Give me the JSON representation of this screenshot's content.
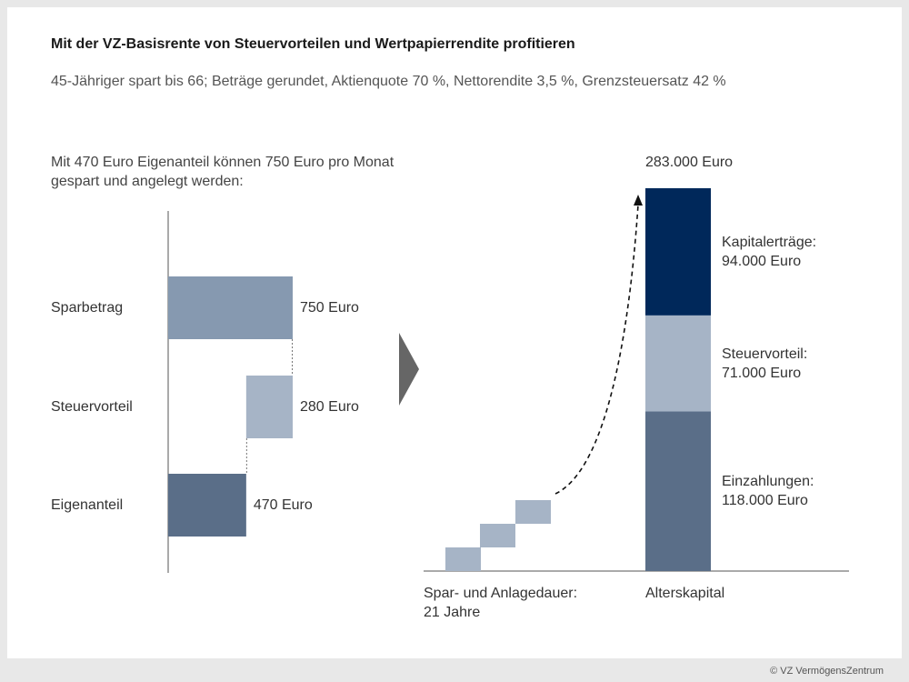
{
  "title": "Mit der VZ-Basisrente von Steuervorteilen und Wertpapierrendite profitieren",
  "subtitle": "45-Jähriger spart bis 66; Beträge gerundet, Aktienquote 70 %, Nettorendite 3,5 %, Grenzsteuersatz 42 %",
  "copyright": "© VZ VermögensZentrum",
  "colors": {
    "dark_navy": "#00285a",
    "slate": "#5a6e88",
    "steel": "#8699b0",
    "light": "#a6b4c6",
    "arrow": "#666666"
  },
  "chart_data": [
    {
      "type": "bar",
      "orientation": "horizontal-waterfall",
      "intro_lines": [
        "Mit 470 Euro Eigenanteil können 750 Euro pro Monat",
        "gespart und angelegt werden:"
      ],
      "categories": [
        "Sparbetrag",
        "Steuervorteil",
        "Eigenanteil"
      ],
      "values": [
        750,
        280,
        470
      ],
      "value_labels": [
        "750 Euro",
        "280 Euro",
        "470 Euro"
      ],
      "unit": "Euro"
    },
    {
      "type": "bar",
      "orientation": "stacked-vertical",
      "total_label": "283.000 Euro",
      "total": 283000,
      "x_label_lines": [
        "Spar- und Anlagedauer:",
        "21 Jahre"
      ],
      "category_label": "Alterskapital",
      "series": [
        {
          "label_lines": [
            "Einzahlungen:",
            "118.000 Euro"
          ],
          "value": 118000
        },
        {
          "label_lines": [
            "Steuervorteil:",
            "71.000 Euro"
          ],
          "value": 71000
        },
        {
          "label_lines": [
            "Kapitalerträge:",
            "94.000 Euro"
          ],
          "value": 94000
        }
      ]
    }
  ]
}
